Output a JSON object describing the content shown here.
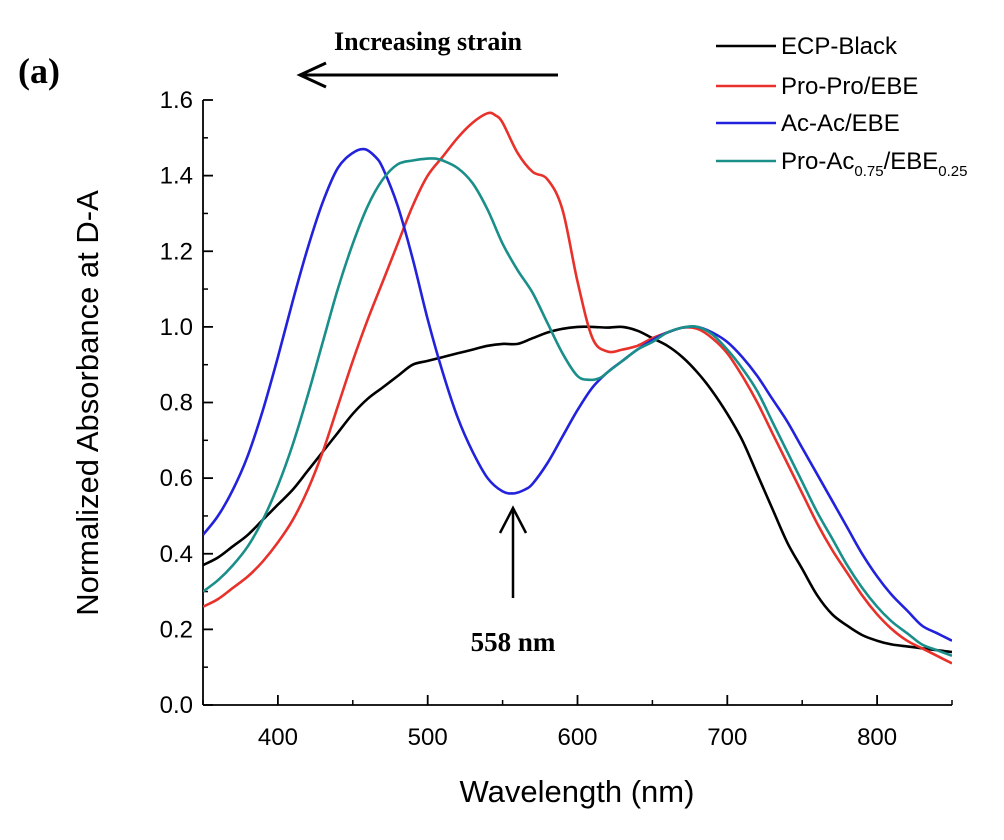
{
  "chart_data": {
    "type": "line",
    "panel_label": "(a)",
    "xlabel": "Wavelength (nm)",
    "ylabel": "Normalized Absorbance at D-A",
    "xlim": [
      350,
      850
    ],
    "ylim": [
      0.0,
      1.6
    ],
    "xticks": [
      400,
      500,
      600,
      700,
      800
    ],
    "xtick_labels": [
      "400",
      "500",
      "600",
      "700",
      "800"
    ],
    "yticks": [
      0.0,
      0.2,
      0.4,
      0.6,
      0.8,
      1.0,
      1.2,
      1.4,
      1.6
    ],
    "ytick_labels": [
      "0.0",
      "0.2",
      "0.4",
      "0.6",
      "0.8",
      "1.0",
      "1.2",
      "1.4",
      "1.6"
    ],
    "grid": false,
    "legend_position": "top-right",
    "annotations": {
      "strain_label": "Increasing strain",
      "peak_label": "558 nm",
      "peak_x": 558,
      "peak_y": 0.56
    },
    "series": [
      {
        "name": "ECP-Black",
        "legend_main": "ECP-Black",
        "color": "#000000",
        "x": [
          350,
          360,
          370,
          380,
          390,
          400,
          410,
          420,
          430,
          440,
          450,
          460,
          470,
          480,
          490,
          500,
          510,
          520,
          530,
          540,
          550,
          560,
          570,
          580,
          590,
          600,
          610,
          620,
          630,
          640,
          650,
          660,
          670,
          680,
          690,
          700,
          710,
          720,
          730,
          740,
          750,
          760,
          770,
          780,
          790,
          800,
          810,
          820,
          830,
          840,
          850
        ],
        "y": [
          0.37,
          0.39,
          0.42,
          0.45,
          0.49,
          0.53,
          0.57,
          0.62,
          0.67,
          0.72,
          0.77,
          0.81,
          0.84,
          0.87,
          0.9,
          0.91,
          0.92,
          0.93,
          0.94,
          0.95,
          0.955,
          0.955,
          0.97,
          0.985,
          0.995,
          1.0,
          1.0,
          0.998,
          1.0,
          0.99,
          0.97,
          0.95,
          0.92,
          0.88,
          0.83,
          0.77,
          0.7,
          0.61,
          0.52,
          0.43,
          0.36,
          0.29,
          0.24,
          0.21,
          0.185,
          0.17,
          0.16,
          0.155,
          0.15,
          0.145,
          0.14
        ]
      },
      {
        "name": "Pro-Pro/EBE",
        "legend_main": "Pro-Pro/EBE",
        "color": "#e8312a",
        "x": [
          350,
          360,
          370,
          380,
          390,
          400,
          410,
          420,
          430,
          440,
          450,
          460,
          470,
          480,
          490,
          500,
          510,
          520,
          530,
          540,
          545,
          550,
          560,
          570,
          580,
          590,
          600,
          610,
          620,
          630,
          640,
          650,
          660,
          670,
          680,
          690,
          700,
          710,
          720,
          730,
          740,
          750,
          760,
          770,
          780,
          790,
          800,
          810,
          820,
          830,
          840,
          850
        ],
        "y": [
          0.26,
          0.28,
          0.31,
          0.34,
          0.38,
          0.43,
          0.49,
          0.57,
          0.67,
          0.79,
          0.91,
          1.02,
          1.12,
          1.22,
          1.32,
          1.4,
          1.45,
          1.5,
          1.54,
          1.565,
          1.56,
          1.54,
          1.46,
          1.41,
          1.39,
          1.31,
          1.12,
          0.97,
          0.935,
          0.94,
          0.95,
          0.97,
          0.985,
          0.998,
          0.995,
          0.97,
          0.93,
          0.87,
          0.8,
          0.72,
          0.64,
          0.56,
          0.48,
          0.41,
          0.35,
          0.29,
          0.24,
          0.2,
          0.17,
          0.15,
          0.13,
          0.11
        ]
      },
      {
        "name": "Ac-Ac/EBE",
        "legend_main": "Ac-Ac/EBE",
        "color": "#2222dd",
        "x": [
          350,
          360,
          370,
          380,
          390,
          400,
          410,
          420,
          430,
          440,
          450,
          458,
          465,
          470,
          480,
          490,
          500,
          510,
          520,
          530,
          540,
          550,
          558,
          565,
          570,
          580,
          590,
          600,
          610,
          620,
          630,
          640,
          650,
          660,
          670,
          680,
          690,
          700,
          710,
          720,
          730,
          740,
          750,
          760,
          770,
          780,
          790,
          800,
          810,
          820,
          830,
          840,
          850
        ],
        "y": [
          0.45,
          0.5,
          0.57,
          0.66,
          0.78,
          0.92,
          1.07,
          1.21,
          1.33,
          1.42,
          1.46,
          1.47,
          1.45,
          1.42,
          1.32,
          1.18,
          1.02,
          0.88,
          0.76,
          0.67,
          0.6,
          0.565,
          0.56,
          0.57,
          0.585,
          0.64,
          0.71,
          0.78,
          0.84,
          0.88,
          0.91,
          0.94,
          0.965,
          0.985,
          0.998,
          1.0,
          0.985,
          0.96,
          0.92,
          0.87,
          0.81,
          0.75,
          0.68,
          0.61,
          0.54,
          0.47,
          0.4,
          0.34,
          0.29,
          0.25,
          0.21,
          0.19,
          0.17
        ]
      },
      {
        "name": "Pro-Ac0.75/EBE0.25",
        "legend_main": "Pro-Ac",
        "legend_sub1": "0.75",
        "legend_mid": "/EBE",
        "legend_sub2": "0.25",
        "color": "#1a8f8a",
        "x": [
          350,
          360,
          370,
          380,
          390,
          400,
          410,
          420,
          430,
          440,
          450,
          460,
          470,
          480,
          490,
          500,
          505,
          510,
          520,
          530,
          540,
          550,
          560,
          570,
          580,
          590,
          600,
          608,
          615,
          620,
          630,
          640,
          650,
          660,
          670,
          680,
          690,
          700,
          710,
          720,
          730,
          740,
          750,
          760,
          770,
          780,
          790,
          800,
          810,
          820,
          830,
          840,
          850
        ],
        "y": [
          0.3,
          0.33,
          0.37,
          0.42,
          0.49,
          0.58,
          0.69,
          0.82,
          0.96,
          1.1,
          1.22,
          1.32,
          1.39,
          1.43,
          1.44,
          1.445,
          1.445,
          1.44,
          1.42,
          1.38,
          1.31,
          1.22,
          1.15,
          1.09,
          1.01,
          0.93,
          0.87,
          0.86,
          0.865,
          0.88,
          0.91,
          0.94,
          0.96,
          0.985,
          0.998,
          1.0,
          0.98,
          0.94,
          0.89,
          0.83,
          0.75,
          0.67,
          0.59,
          0.51,
          0.44,
          0.37,
          0.31,
          0.26,
          0.22,
          0.19,
          0.16,
          0.145,
          0.13
        ]
      }
    ]
  }
}
